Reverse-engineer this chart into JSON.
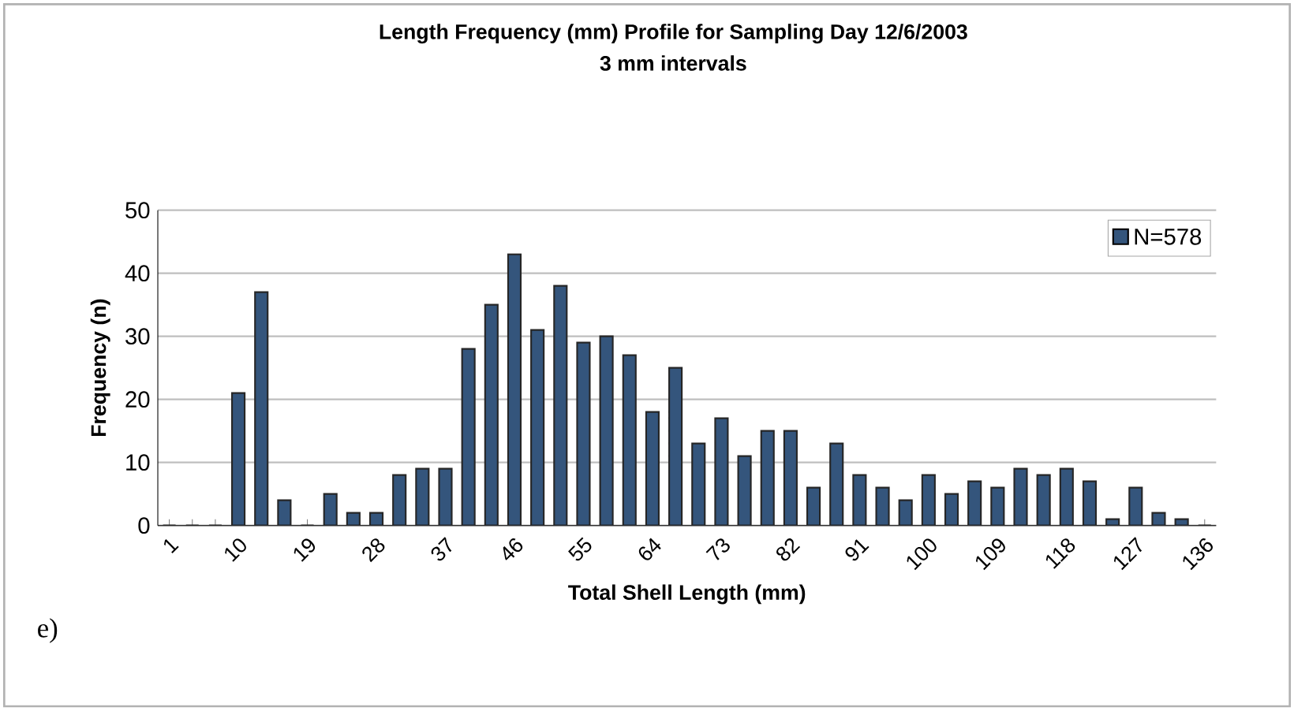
{
  "chart_data": {
    "type": "bar",
    "title": "Length Frequency (mm) Profile for Sampling Day 12/6/2003",
    "subtitle": "3 mm intervals",
    "xlabel": "Total Shell Length (mm)",
    "ylabel": "Frequency (n)",
    "categories": [
      "1",
      null,
      null,
      "10",
      null,
      null,
      "19",
      null,
      null,
      "28",
      null,
      null,
      "37",
      null,
      null,
      "46",
      null,
      null,
      "55",
      null,
      null,
      "64",
      null,
      null,
      "73",
      null,
      null,
      "82",
      null,
      null,
      "91",
      null,
      null,
      "100",
      null,
      null,
      "109",
      null,
      null,
      "118",
      null,
      null,
      "127",
      null,
      null,
      "136"
    ],
    "series": [
      {
        "name": "N=578",
        "color": "#34557c",
        "values": [
          0,
          0,
          0,
          21,
          37,
          4,
          0,
          5,
          2,
          2,
          8,
          9,
          9,
          28,
          35,
          43,
          31,
          38,
          29,
          30,
          27,
          18,
          25,
          13,
          17,
          11,
          15,
          15,
          6,
          13,
          8,
          6,
          4,
          8,
          5,
          7,
          6,
          9,
          8,
          9,
          7,
          1,
          6,
          2,
          1,
          0
        ]
      }
    ],
    "ylim": [
      0,
      50
    ],
    "yticks": [
      0,
      10,
      20,
      30,
      40,
      50
    ],
    "grid": "y",
    "legend": "top right",
    "annotations": [
      "e)"
    ]
  }
}
